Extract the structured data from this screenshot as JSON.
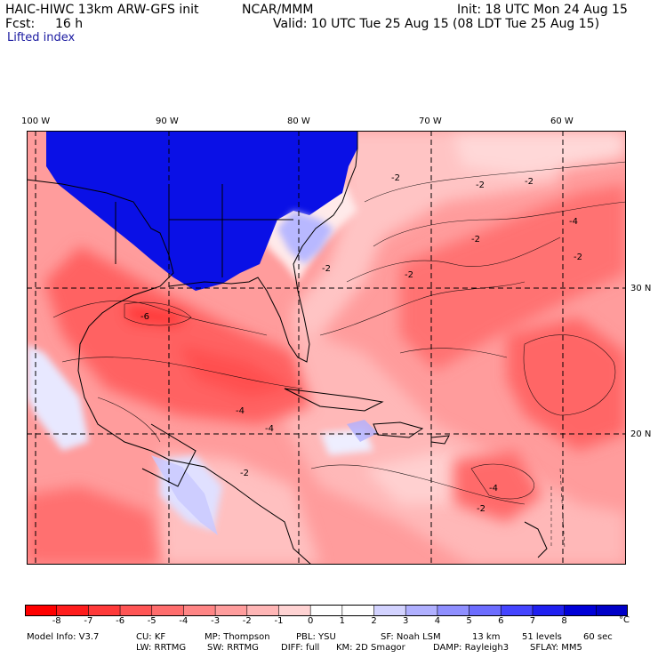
{
  "header": {
    "model": "HAIC-HIWC 13km ARW-GFS init",
    "org": "NCAR/MMM",
    "init": "Init: 18 UTC Mon 24 Aug 15",
    "fcst_label": "Fcst:",
    "fcst_value": "16 h",
    "valid": "Valid: 10 UTC Tue 25 Aug 15 (08 LDT Tue 25 Aug 15)",
    "field": "Lifted index"
  },
  "map": {
    "lon_labels": [
      "100 W",
      "90 W",
      "80 W",
      "70 W",
      "60 W"
    ],
    "lat_labels": [
      "30 N",
      "20 N"
    ],
    "contour_labels": [
      "-2",
      "-2",
      "-2",
      "-2",
      "-2",
      "-2",
      "-4",
      "-4",
      "-4",
      "-4",
      "-2",
      "-6",
      "-2",
      "-2"
    ]
  },
  "colorbar": {
    "tick_labels": [
      "-8",
      "-7",
      "-6",
      "-5",
      "-4",
      "-3",
      "-2",
      "-1",
      "0",
      "1",
      "2",
      "3",
      "4",
      "5",
      "6",
      "7",
      "8"
    ],
    "unit": "°C",
    "colors": [
      "#ff0000",
      "#ff1d1d",
      "#ff3a3a",
      "#ff5555",
      "#ff6d6d",
      "#ff8585",
      "#ff9d9d",
      "#ffb6b6",
      "#ffd3d3",
      "#ffffff",
      "#ffffff",
      "#d3d3ff",
      "#b0b0ff",
      "#8f8fff",
      "#6d6dff",
      "#4545ff",
      "#2020f0",
      "#0000d8",
      "#0000c8"
    ]
  },
  "footer": {
    "line1": [
      "Model Info: V3.7",
      "CU: KF",
      "MP: Thompson",
      "PBL: YSU",
      "SF: Noah LSM",
      "13 km",
      "51 levels",
      "60 sec"
    ],
    "line2": [
      "LW: RRTMG",
      "SW: RRTMG",
      "DIFF: full",
      "KM: 2D Smagor",
      "DAMP: Rayleigh3",
      "SFLAY: MM5"
    ]
  }
}
